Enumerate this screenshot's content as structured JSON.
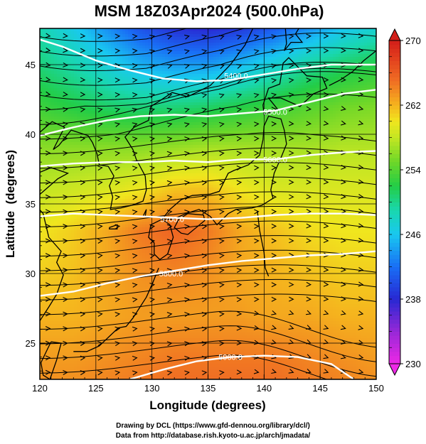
{
  "chart_data": {
    "type": "contour-map",
    "title": "MSM 18Z03Apr2024 (500.0hPa)",
    "xlabel": "Longitude (degrees)",
    "ylabel": "Latitude  (degrees)",
    "xlim": [
      120,
      150
    ],
    "ylim": [
      22.4,
      47.6
    ],
    "x_ticks": [
      120,
      125,
      130,
      135,
      140,
      145,
      150
    ],
    "x_tick_labels": [
      "120",
      "125",
      "130",
      "135",
      "140",
      "145",
      "150"
    ],
    "y_ticks": [
      25,
      30,
      35,
      40,
      45
    ],
    "y_tick_labels": [
      "25",
      "30",
      "35",
      "40",
      "45"
    ],
    "grid": true,
    "colorbar": {
      "min": 230,
      "max": 270,
      "ticks": [
        230,
        238,
        246,
        254,
        262,
        270
      ],
      "tick_labels": [
        "230",
        "238",
        "246",
        "254",
        "262",
        "270"
      ],
      "position": "right"
    },
    "temperature_field": [
      {
        "lat": 47.6,
        "temps": [
          249.0,
          246.5,
          243.5,
          240.5,
          238.5,
          238.0,
          239.0,
          241.0,
          243.5,
          246.0,
          247.5
        ]
      },
      {
        "lat": 45,
        "temps": [
          250.5,
          249.0,
          247.0,
          245.0,
          244.0,
          244.0,
          245.5,
          247.5,
          249.5,
          251.0,
          252.0
        ]
      },
      {
        "lat": 42,
        "temps": [
          253.0,
          252.0,
          251.0,
          250.5,
          250.5,
          251.0,
          252.0,
          253.0,
          254.0,
          255.0,
          255.5
        ]
      },
      {
        "lat": 39,
        "temps": [
          256.0,
          256.0,
          256.0,
          256.0,
          256.5,
          257.0,
          257.0,
          257.0,
          257.0,
          257.5,
          257.5
        ]
      },
      {
        "lat": 36,
        "temps": [
          258.0,
          258.5,
          259.0,
          260.0,
          261.5,
          261.5,
          260.0,
          259.0,
          259.0,
          259.0,
          259.0
        ]
      },
      {
        "lat": 33,
        "temps": [
          260.0,
          261.0,
          262.5,
          264.5,
          265.5,
          264.5,
          262.5,
          261.5,
          260.5,
          260.0,
          260.0
        ]
      },
      {
        "lat": 30,
        "temps": [
          261.0,
          261.5,
          262.5,
          263.5,
          264.0,
          263.5,
          262.5,
          262.0,
          261.5,
          261.0,
          261.0
        ]
      },
      {
        "lat": 27,
        "temps": [
          262.0,
          262.0,
          262.5,
          263.0,
          263.0,
          263.0,
          263.0,
          262.5,
          262.5,
          262.0,
          262.0
        ]
      },
      {
        "lat": 24,
        "temps": [
          263.0,
          263.0,
          263.5,
          264.0,
          264.5,
          264.5,
          264.5,
          264.5,
          264.0,
          263.5,
          263.0
        ]
      },
      {
        "lat": 22.4,
        "temps": [
          263.5,
          263.5,
          264.0,
          264.5,
          265.0,
          265.0,
          265.0,
          265.0,
          264.5,
          264.0,
          263.5
        ]
      }
    ],
    "temperature_field_lons": [
      120,
      123,
      126,
      129,
      132,
      135,
      138,
      141,
      144,
      147,
      150
    ],
    "height_contours": [
      {
        "label": "5400.0",
        "label_lon": 137.5,
        "label_lat": 44.2,
        "points": [
          [
            120,
            46.8
          ],
          [
            122,
            46.3
          ],
          [
            125,
            45.3
          ],
          [
            128,
            44.6
          ],
          [
            131,
            44.0
          ],
          [
            134,
            43.8
          ],
          [
            137,
            43.9
          ],
          [
            140,
            44.3
          ],
          [
            143,
            44.7
          ],
          [
            146,
            45.0
          ],
          [
            150,
            45.0
          ]
        ]
      },
      {
        "label": "5500.0",
        "label_lon": 141.0,
        "label_lat": 41.6,
        "points": [
          [
            120,
            39.9
          ],
          [
            123,
            40.5
          ],
          [
            126,
            41.0
          ],
          [
            129,
            41.3
          ],
          [
            132,
            41.4
          ],
          [
            135,
            41.3
          ],
          [
            138,
            41.5
          ],
          [
            141,
            41.7
          ],
          [
            144,
            42.3
          ],
          [
            147,
            42.9
          ],
          [
            150,
            43.2
          ]
        ]
      },
      {
        "label": "5600.0",
        "label_lon": 141.0,
        "label_lat": 38.2,
        "points": [
          [
            120,
            37.7
          ],
          [
            123,
            37.9
          ],
          [
            126,
            38.0
          ],
          [
            129,
            38.0
          ],
          [
            132,
            38.1
          ],
          [
            135,
            38.0
          ],
          [
            138,
            38.2
          ],
          [
            141,
            38.2
          ],
          [
            144,
            38.5
          ],
          [
            147,
            38.7
          ],
          [
            150,
            38.8
          ]
        ]
      },
      {
        "label": "5700.0",
        "label_lon": 131.8,
        "label_lat": 33.9,
        "points": [
          [
            120,
            34.1
          ],
          [
            123,
            34.3
          ],
          [
            126,
            34.2
          ],
          [
            129,
            34.1
          ],
          [
            132,
            34.0
          ],
          [
            135,
            33.9
          ],
          [
            138,
            34.0
          ],
          [
            141,
            34.2
          ],
          [
            144,
            34.3
          ],
          [
            147,
            34.3
          ],
          [
            150,
            34.2
          ]
        ]
      },
      {
        "label": "5800.0",
        "label_lon": 131.7,
        "label_lat": 30.0,
        "points": [
          [
            120,
            28.4
          ],
          [
            123,
            28.7
          ],
          [
            126,
            29.3
          ],
          [
            129,
            29.8
          ],
          [
            132,
            30.2
          ],
          [
            135,
            30.6
          ],
          [
            138,
            30.9
          ],
          [
            141,
            31.1
          ],
          [
            144,
            31.3
          ],
          [
            147,
            31.4
          ],
          [
            150,
            31.6
          ]
        ]
      },
      {
        "label": "5900.0",
        "label_lon": 137.0,
        "label_lat": 24.0,
        "points": [
          [
            128,
            22.4
          ],
          [
            131,
            23.1
          ],
          [
            134,
            23.7
          ],
          [
            137,
            24.0
          ],
          [
            140,
            24.1
          ],
          [
            143,
            24.0
          ],
          [
            146,
            23.5
          ],
          [
            148,
            22.4
          ]
        ]
      }
    ],
    "wind_vectors": "streamlines with arrowheads, predominantly westerly flow over the whole domain"
  },
  "credits": {
    "line1": "Drawing by DCL (https://www.gfd-dennou.org/library/dcl/)",
    "line2": "Data from http://database.rish.kyoto-u.ac.jp/arch/jmadata/"
  }
}
